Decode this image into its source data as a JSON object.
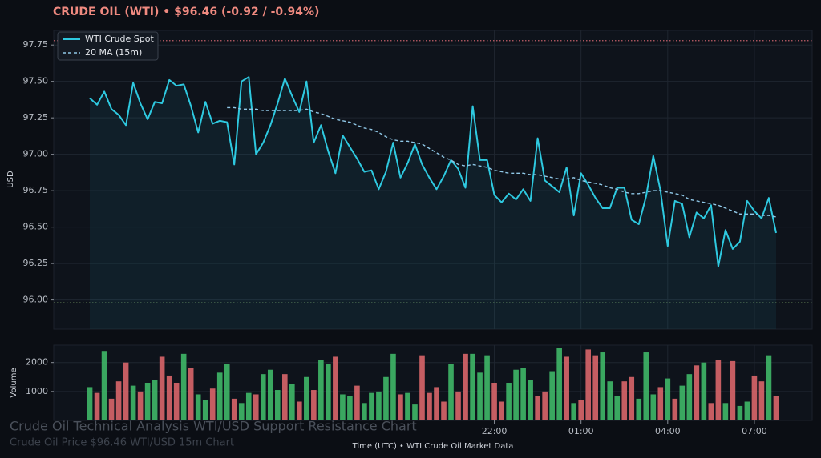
{
  "chart_data": {
    "type": "line",
    "title": "CRUDE OIL (WTI)  •  $96.46  (-0.92 / -0.94%)",
    "y_label": "USD",
    "x_label": "Time (UTC)  •  WTI Crude Oil Market Data",
    "x": [
      0,
      1,
      2,
      3,
      4,
      5,
      6,
      7,
      8,
      9,
      10,
      11,
      12,
      13,
      14,
      15,
      16,
      17,
      18,
      19,
      20,
      21,
      22,
      23,
      24,
      25,
      26,
      27,
      28,
      29,
      30,
      31,
      32,
      33,
      34,
      35,
      36,
      37,
      38,
      39,
      40,
      41,
      42,
      43,
      44,
      45,
      46,
      47,
      48,
      49,
      50,
      51,
      52,
      53,
      54,
      55,
      56,
      57,
      58,
      59,
      60,
      61,
      62,
      63,
      64,
      65,
      66,
      67,
      68,
      69,
      70,
      71,
      72,
      73,
      74,
      75,
      76,
      77,
      78,
      79,
      80,
      81,
      82,
      83,
      84,
      85,
      86,
      87,
      88,
      89,
      90,
      91,
      92,
      93,
      94,
      95
    ],
    "xlim": [
      -5,
      100
    ],
    "xticks": [
      {
        "value": 56,
        "label": "22:00"
      },
      {
        "value": 68,
        "label": "01:00"
      },
      {
        "value": 80,
        "label": "04:00"
      },
      {
        "value": 92,
        "label": "07:00"
      }
    ],
    "ylim": [
      95.8,
      97.85
    ],
    "yticks": [
      {
        "value": 96,
        "label": "96.00"
      },
      96.25,
      {
        "value": 96.5,
        "label": "96.50"
      },
      96.75,
      {
        "value": 97,
        "label": "97.00"
      },
      97.25,
      {
        "value": 97.5,
        "label": "97.50"
      },
      97.75
    ],
    "grid": true,
    "legend": "upper left",
    "series": [
      {
        "name": "WTI Crude Spot",
        "color": "#2ec9e0",
        "style": "solid",
        "values": [
          97.385,
          97.34,
          97.43,
          97.31,
          97.27,
          97.2,
          97.49,
          97.35,
          97.24,
          97.36,
          97.35,
          97.51,
          97.47,
          97.48,
          97.33,
          97.15,
          97.36,
          97.21,
          97.23,
          97.22,
          96.93,
          97.5,
          97.53,
          97.0,
          97.08,
          97.2,
          97.35,
          97.52,
          97.4,
          97.29,
          97.5,
          97.08,
          97.2,
          97.02,
          96.87,
          97.13,
          97.05,
          96.97,
          96.88,
          96.89,
          96.76,
          96.88,
          97.08,
          96.84,
          96.94,
          97.07,
          96.93,
          96.84,
          96.76,
          96.85,
          96.96,
          96.9,
          96.77,
          97.33,
          96.96,
          96.96,
          96.72,
          96.67,
          96.73,
          96.69,
          96.76,
          96.68,
          97.11,
          96.82,
          96.78,
          96.74,
          96.91,
          96.58,
          96.87,
          96.79,
          96.7,
          96.63,
          96.63,
          96.77,
          96.77,
          96.55,
          96.52,
          96.71,
          96.99,
          96.75,
          96.37,
          96.68,
          96.66,
          96.43,
          96.6,
          96.56,
          96.65,
          96.23,
          96.48,
          96.35,
          96.4,
          96.68,
          96.61,
          96.56,
          96.7,
          96.46
        ]
      },
      {
        "name": "20 MA (15m)",
        "color": "#8fc7e6",
        "style": "dashed",
        "values": [
          null,
          null,
          null,
          null,
          null,
          null,
          null,
          null,
          null,
          null,
          null,
          null,
          null,
          null,
          null,
          null,
          null,
          null,
          null,
          97.32,
          97.32,
          97.31,
          97.31,
          97.31,
          97.3,
          97.3,
          97.3,
          97.3,
          97.3,
          97.3,
          97.31,
          97.29,
          97.28,
          97.26,
          97.24,
          97.23,
          97.22,
          97.2,
          97.18,
          97.17,
          97.15,
          97.12,
          97.1,
          97.09,
          97.09,
          97.08,
          97.07,
          97.04,
          97.01,
          96.98,
          96.96,
          96.93,
          96.92,
          96.93,
          96.92,
          96.91,
          96.89,
          96.88,
          96.87,
          96.87,
          96.87,
          96.86,
          96.86,
          96.85,
          96.84,
          96.83,
          96.83,
          96.84,
          96.82,
          96.81,
          96.8,
          96.79,
          96.77,
          96.76,
          96.74,
          96.73,
          96.73,
          96.74,
          96.75,
          96.75,
          96.74,
          96.73,
          96.72,
          96.69,
          96.68,
          96.67,
          96.66,
          96.65,
          96.63,
          96.61,
          96.59,
          96.59,
          96.59,
          96.58,
          96.58,
          96.57
        ]
      }
    ],
    "hlines": [
      {
        "value": 97.78,
        "color": "#e06c75"
      },
      {
        "value": 95.98,
        "color": "#98c379"
      }
    ],
    "volume": {
      "type": "bar",
      "y_label": "Volume",
      "ylim": [
        0,
        2600
      ],
      "yticks": [
        1000,
        2000
      ],
      "values": [
        1150,
        950,
        2400,
        750,
        1350,
        2000,
        1200,
        1000,
        1300,
        1400,
        2200,
        1550,
        1300,
        2300,
        1800,
        900,
        700,
        1100,
        1650,
        1950,
        750,
        600,
        950,
        900,
        1600,
        1750,
        1050,
        1600,
        1250,
        650,
        1500,
        1050,
        2100,
        1950,
        2200,
        900,
        850,
        1200,
        600,
        950,
        1000,
        1500,
        2300,
        900,
        950,
        550,
        2250,
        950,
        1150,
        650,
        1950,
        1000,
        2300,
        2300,
        1650,
        2250,
        1300,
        650,
        1300,
        1750,
        1800,
        1400,
        850,
        1000,
        1700,
        2500,
        2200,
        600,
        700,
        2450,
        2250,
        2350,
        1350,
        850,
        1350,
        1500,
        750,
        2350,
        900,
        1150,
        1450,
        750,
        1200,
        1600,
        1900,
        2000,
        600,
        2100,
        600,
        2050,
        500,
        650,
        1550,
        1350,
        2250,
        850
      ],
      "colors": [
        "#3fb868",
        "#d9666a",
        "#3fb868",
        "#d9666a",
        "#d9666a",
        "#d9666a",
        "#3fb868",
        "#d9666a",
        "#3fb868",
        "#3fb868",
        "#d9666a",
        "#d9666a",
        "#d9666a",
        "#3fb868",
        "#d9666a",
        "#3fb868",
        "#3fb868",
        "#d9666a",
        "#3fb868",
        "#3fb868",
        "#d9666a",
        "#3fb868",
        "#3fb868",
        "#d9666a",
        "#3fb868",
        "#3fb868",
        "#3fb868",
        "#d9666a",
        "#3fb868",
        "#d9666a",
        "#3fb868",
        "#d9666a",
        "#3fb868",
        "#3fb868",
        "#d9666a",
        "#3fb868",
        "#3fb868",
        "#d9666a",
        "#3fb868",
        "#3fb868",
        "#3fb868",
        "#3fb868",
        "#3fb868",
        "#d9666a",
        "#3fb868",
        "#3fb868",
        "#d9666a",
        "#d9666a",
        "#d9666a",
        "#d9666a",
        "#3fb868",
        "#d9666a",
        "#d9666a",
        "#3fb868",
        "#3fb868",
        "#3fb868",
        "#d9666a",
        "#d9666a",
        "#3fb868",
        "#3fb868",
        "#3fb868",
        "#3fb868",
        "#d9666a",
        "#d9666a",
        "#3fb868",
        "#3fb868",
        "#d9666a",
        "#3fb868",
        "#d9666a",
        "#d9666a",
        "#d9666a",
        "#3fb868",
        "#3fb868",
        "#3fb868",
        "#d9666a",
        "#d9666a",
        "#3fb868",
        "#3fb868",
        "#3fb868",
        "#d9666a",
        "#3fb868",
        "#d9666a",
        "#3fb868",
        "#3fb868",
        "#d9666a",
        "#3fb868",
        "#d9666a",
        "#d9666a",
        "#3fb868",
        "#d9666a",
        "#3fb868",
        "#3fb868",
        "#d9666a",
        "#d9666a",
        "#3fb868",
        "#d9666a"
      ]
    }
  },
  "watermark": {
    "title": "Crude Oil Technical Analysis WTI/USD Support Resistance Chart",
    "subtitle": "Crude Oil Price $96.46 WTI/USD 15m Chart"
  }
}
